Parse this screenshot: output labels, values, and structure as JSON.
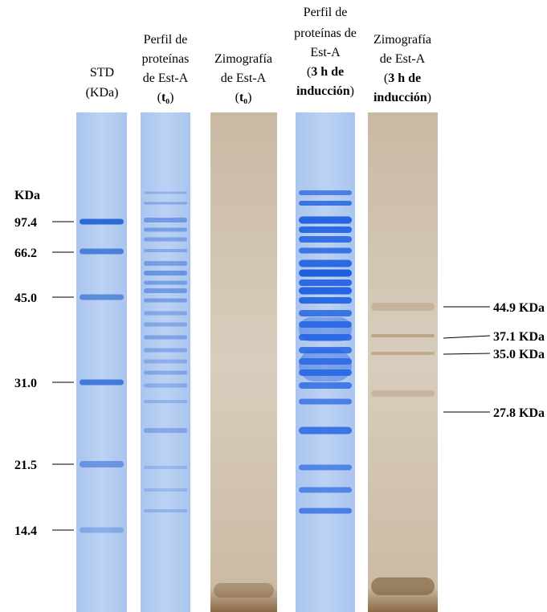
{
  "headers": [
    {
      "lines": [
        [
          {
            "text": "STD",
            "bold": false
          }
        ],
        [
          {
            "text": "(KDa)",
            "bold": false
          }
        ]
      ]
    },
    {
      "lines": [
        [
          {
            "text": "Perfil de",
            "bold": false
          }
        ],
        [
          {
            "text": "proteínas",
            "bold": false
          }
        ],
        [
          {
            "text": "de Est-A",
            "bold": false
          }
        ],
        [
          {
            "text": "(",
            "bold": false
          },
          {
            "text": "t₀",
            "bold": true
          },
          {
            "text": ")",
            "bold": false
          }
        ]
      ]
    },
    {
      "lines": [
        [
          {
            "text": "Zimografía",
            "bold": false
          }
        ],
        [
          {
            "text": "de  Est-A",
            "bold": false
          }
        ],
        [
          {
            "text": "(",
            "bold": false
          },
          {
            "text": "t₀",
            "bold": true
          },
          {
            "text": ")",
            "bold": false
          }
        ]
      ]
    },
    {
      "lines": [
        [
          {
            "text": "Perfil de",
            "bold": false
          }
        ],
        [
          {
            "text": "proteínas de",
            "bold": false
          }
        ],
        [
          {
            "text": "Est-A",
            "bold": false
          }
        ],
        [
          {
            "text": "(",
            "bold": false
          },
          {
            "text": "3 h de",
            "bold": true
          }
        ],
        [
          {
            "text": "inducción",
            "bold": true
          },
          {
            "text": ")",
            "bold": false
          }
        ]
      ]
    },
    {
      "lines": [
        [
          {
            "text": "Zimografía",
            "bold": false
          }
        ],
        [
          {
            "text": "de  Est-A",
            "bold": false
          }
        ],
        [
          {
            "text": "(",
            "bold": false
          },
          {
            "text": "3 h de",
            "bold": true
          }
        ],
        [
          {
            "text": "inducción",
            "bold": true
          },
          {
            "text": ")",
            "bold": false
          }
        ]
      ]
    }
  ],
  "left_axis": {
    "unit": "KDa",
    "markers": [
      "97.4",
      "66.2",
      "45.0",
      "31.0",
      "21.5",
      "14.4"
    ]
  },
  "right_labels": [
    "44.9 KDa",
    "37.1 KDa",
    "35.0 KDa",
    "27.8 KDa"
  ]
}
